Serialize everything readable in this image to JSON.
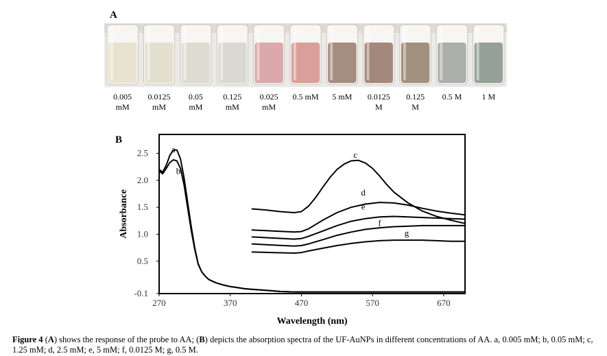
{
  "panel_a": {
    "label": "A",
    "concentrations": [
      {
        "line1": "0.005",
        "line2": "mM"
      },
      {
        "line1": "0.0125",
        "line2": "mM"
      },
      {
        "line1": "0.05",
        "line2": "mM"
      },
      {
        "line1": "0.125",
        "line2": "mM"
      },
      {
        "line1": "0.025",
        "line2": "mM"
      },
      {
        "line1": "0.5 mM",
        "line2": ""
      },
      {
        "line1": "5 mM",
        "line2": ""
      },
      {
        "line1": "0.0125",
        "line2": "M"
      },
      {
        "line1": "0.125",
        "line2": "M"
      },
      {
        "line1": "0.5 M",
        "line2": ""
      },
      {
        "line1": "1 M",
        "line2": ""
      }
    ],
    "vial_colors": [
      "#e7e2cd",
      "#e2decd",
      "#dcd9cd",
      "#d7d6cf",
      "#d9a3a6",
      "#d79a95",
      "#a08878",
      "#a08275",
      "#9d8a78",
      "#a6aba8",
      "#8f9c92"
    ]
  },
  "panel_b": {
    "label": "B"
  },
  "chart_data": {
    "type": "line",
    "xlabel": "Wavelength (nm)",
    "ylabel": "Absorbance",
    "xlim": [
      270,
      700
    ],
    "ylim": [
      -0.1,
      2.85
    ],
    "xticks": [
      270,
      370,
      470,
      570,
      670
    ],
    "yticks": [
      -0.1,
      0.5,
      1.0,
      1.5,
      2.0,
      2.5
    ],
    "ytick_labels": [
      "-0.1",
      "0.5",
      "1.0",
      "1.5",
      "2.0",
      "2.5"
    ],
    "grid": false,
    "series": [
      {
        "name": "a",
        "label_at": [
          290,
          2.52
        ],
        "x": [
          270,
          275,
          280,
          285,
          290,
          295,
          300,
          305,
          310,
          315,
          320,
          325,
          330,
          335,
          340,
          350,
          360,
          370,
          380,
          390,
          400,
          420,
          440,
          460,
          480,
          500,
          550,
          600,
          650,
          700
        ],
        "y": [
          2.2,
          2.15,
          2.28,
          2.46,
          2.56,
          2.56,
          2.4,
          2.05,
          1.6,
          1.15,
          0.75,
          0.45,
          0.3,
          0.22,
          0.16,
          0.1,
          0.06,
          0.03,
          0.01,
          -0.01,
          -0.02,
          -0.04,
          -0.06,
          -0.07,
          -0.07,
          -0.07,
          -0.07,
          -0.07,
          -0.07,
          -0.07
        ]
      },
      {
        "name": "b",
        "label_at": [
          297,
          2.12
        ],
        "x": [
          270,
          275,
          280,
          285,
          290,
          295,
          300,
          305,
          310,
          315,
          320,
          325,
          330,
          335,
          340,
          350,
          360,
          370,
          380,
          390,
          400,
          420,
          440,
          460,
          480,
          500,
          550,
          600,
          650,
          700
        ],
        "y": [
          2.17,
          2.12,
          2.22,
          2.33,
          2.38,
          2.36,
          2.22,
          1.92,
          1.5,
          1.08,
          0.72,
          0.44,
          0.3,
          0.22,
          0.16,
          0.1,
          0.06,
          0.03,
          0.01,
          -0.01,
          -0.02,
          -0.04,
          -0.06,
          -0.07,
          -0.07,
          -0.07,
          -0.07,
          -0.07,
          -0.07,
          -0.07
        ]
      },
      {
        "name": "c",
        "label_at": [
          546,
          2.42
        ],
        "x": [
          400,
          420,
          440,
          460,
          470,
          480,
          490,
          500,
          510,
          520,
          530,
          540,
          550,
          560,
          570,
          580,
          590,
          600,
          620,
          640,
          660,
          680,
          700
        ],
        "y": [
          1.47,
          1.45,
          1.42,
          1.4,
          1.42,
          1.52,
          1.68,
          1.87,
          2.05,
          2.2,
          2.3,
          2.36,
          2.37,
          2.32,
          2.22,
          2.08,
          1.92,
          1.78,
          1.58,
          1.43,
          1.33,
          1.26,
          1.2
        ]
      },
      {
        "name": "d",
        "label_at": [
          557,
          1.72
        ],
        "x": [
          400,
          430,
          460,
          470,
          480,
          490,
          500,
          520,
          540,
          560,
          580,
          600,
          620,
          640,
          660,
          680,
          700
        ],
        "y": [
          1.08,
          1.06,
          1.04,
          1.05,
          1.1,
          1.18,
          1.26,
          1.4,
          1.5,
          1.56,
          1.59,
          1.58,
          1.54,
          1.48,
          1.43,
          1.39,
          1.36
        ]
      },
      {
        "name": "e",
        "label_at": [
          557,
          1.46
        ],
        "x": [
          400,
          430,
          460,
          470,
          480,
          500,
          520,
          540,
          560,
          580,
          600,
          620,
          640,
          660,
          680,
          700
        ],
        "y": [
          0.95,
          0.93,
          0.91,
          0.92,
          0.96,
          1.06,
          1.16,
          1.24,
          1.29,
          1.32,
          1.33,
          1.32,
          1.31,
          1.3,
          1.29,
          1.28
        ]
      },
      {
        "name": "f",
        "label_at": [
          580,
          1.15
        ],
        "x": [
          400,
          430,
          460,
          470,
          480,
          500,
          520,
          540,
          560,
          580,
          600,
          620,
          640,
          660,
          680,
          700
        ],
        "y": [
          0.82,
          0.8,
          0.78,
          0.79,
          0.82,
          0.9,
          0.98,
          1.04,
          1.09,
          1.12,
          1.14,
          1.15,
          1.16,
          1.16,
          1.16,
          1.16
        ]
      },
      {
        "name": "g",
        "label_at": [
          618,
          0.97
        ],
        "x": [
          400,
          430,
          460,
          470,
          480,
          500,
          520,
          540,
          560,
          580,
          600,
          620,
          640,
          660,
          680,
          700
        ],
        "y": [
          0.67,
          0.66,
          0.65,
          0.66,
          0.69,
          0.74,
          0.79,
          0.83,
          0.86,
          0.88,
          0.89,
          0.89,
          0.89,
          0.88,
          0.87,
          0.87
        ]
      }
    ]
  },
  "caption": {
    "figure_label": "Figure 4",
    "text_1": " (",
    "a_label": "A",
    "text_2": ") shows the response of the probe to AA; (",
    "b_label": "B",
    "text_3": ") depicts the absorption spectra of the UF-AuNPs in different concentrations of AA. a, 0.005 mM; b, 0.05 mM; c, 1.25 mM; d, 2.5 mM; e, 5 mM; f, 0.0125 M; g, 0.5 M."
  }
}
